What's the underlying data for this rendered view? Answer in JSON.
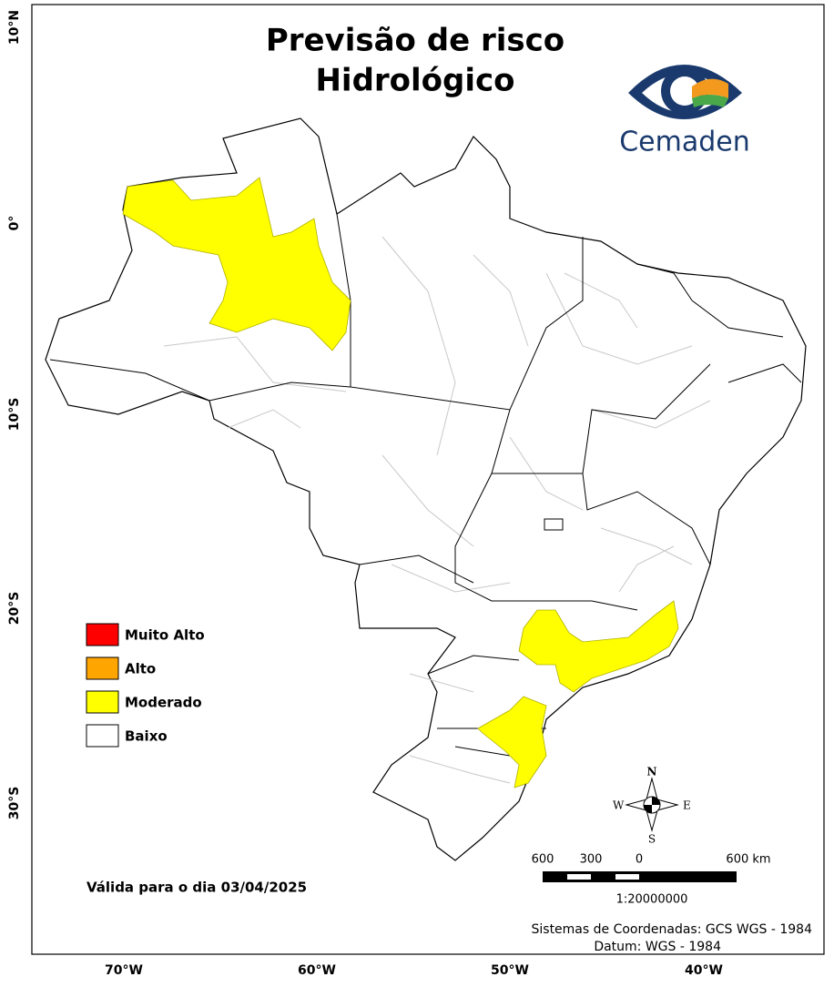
{
  "title": {
    "lines": [
      "Previsão de risco",
      "Hidrológico"
    ]
  },
  "logo": {
    "text": "Cemaden"
  },
  "axes": {
    "latitude": [
      "10°N",
      "0°",
      "10°S",
      "20°S",
      "30°S"
    ],
    "longitude": [
      "70°W",
      "60°W",
      "50°W",
      "40°W"
    ]
  },
  "legend": {
    "items": [
      {
        "label": "Muito Alto",
        "color": "#ff0000"
      },
      {
        "label": "Alto",
        "color": "#ffa500"
      },
      {
        "label": "Moderado",
        "color": "#ffff00"
      },
      {
        "label": "Baixo",
        "color": "#ffffff"
      }
    ]
  },
  "validity": "Válida para o dia 03/04/2025",
  "compass": {
    "n": "N",
    "s": "S",
    "e": "E",
    "w": "W"
  },
  "scale": {
    "labels": [
      "600",
      "300",
      "0",
      "600 km"
    ],
    "ratio": "1:20000000"
  },
  "footer": {
    "lines": [
      "Sistemas de Coordenadas: GCS WGS - 1984",
      "Datum: WGS - 1984"
    ]
  }
}
